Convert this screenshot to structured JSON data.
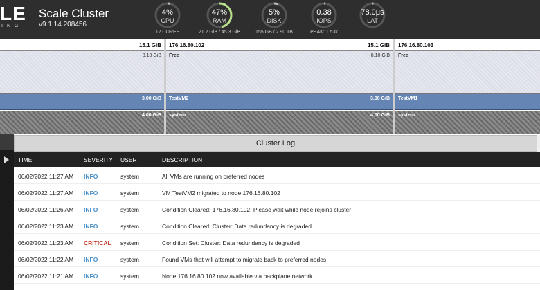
{
  "header": {
    "logo_text": "LE",
    "logo_sub": "ING",
    "cluster_name": "Scale Cluster",
    "version": "v9.1.14.208456",
    "gauges": [
      {
        "value": "4%",
        "label": "CPU",
        "sub": "12 CORES",
        "fill": 0.04,
        "color": "#bbbbbb"
      },
      {
        "value": "47%",
        "label": "RAM",
        "sub": "21.2 GiB / 45.3 GiB",
        "fill": 0.47,
        "color": "#b8e08a"
      },
      {
        "value": "5%",
        "label": "DISK",
        "sub": "155 GB / 2.90 TB",
        "fill": 0.05,
        "color": "#bbbbbb"
      },
      {
        "value": "0.38",
        "label": "IOPS",
        "sub": "PEAK: 1.53k",
        "fill": 0.0,
        "color": "#bbbbbb"
      },
      {
        "value": "78.0μs",
        "label": "LAT",
        "sub": "",
        "fill": 0.0,
        "color": "#bbbbbb"
      }
    ]
  },
  "nodes": [
    {
      "ip": "",
      "total": "15.1 GiB",
      "free_label": "",
      "free_size": "8.10 GiB",
      "vm_label": "",
      "vm_size": "3.00 GiB",
      "sys_label": "",
      "sys_size": "4.00 GiB"
    },
    {
      "ip": "176.16.80.102",
      "total": "15.1 GiB",
      "free_label": "Free",
      "free_size": "8.10 GiB",
      "vm_label": "TestVM2",
      "vm_size": "3.00 GiB",
      "sys_label": "system",
      "sys_size": "4.00 GiB"
    },
    {
      "ip": "176.16.80.103",
      "total": "",
      "free_label": "Free",
      "free_size": "",
      "vm_label": "TestVM1",
      "vm_size": "",
      "sys_label": "system",
      "sys_size": ""
    }
  ],
  "log": {
    "title": "Cluster Log",
    "columns": {
      "time": "TIME",
      "severity": "SEVERITY",
      "user": "USER",
      "description": "DESCRIPTION"
    },
    "rows": [
      {
        "time": "06/02/2022 11:27 AM",
        "severity": "INFO",
        "user": "system",
        "description": "All VMs are running on preferred nodes"
      },
      {
        "time": "06/02/2022 11:27 AM",
        "severity": "INFO",
        "user": "system",
        "description": "VM TestVM2 migrated to node 176.16.80.102"
      },
      {
        "time": "06/02/2022 11:26 AM",
        "severity": "INFO",
        "user": "system",
        "description": "Condition Cleared: 176.16.80.102: Please wait while node rejoins cluster"
      },
      {
        "time": "06/02/2022 11:23 AM",
        "severity": "INFO",
        "user": "system",
        "description": "Condition Cleared: Cluster: Data redundancy is degraded"
      },
      {
        "time": "06/02/2022 11:23 AM",
        "severity": "CRITICAL",
        "user": "system",
        "description": "Condition Set: Cluster: Data redundancy is degraded"
      },
      {
        "time": "06/02/2022 11:22 AM",
        "severity": "INFO",
        "user": "system",
        "description": "Found VMs that will attempt to migrate back to preferred nodes"
      },
      {
        "time": "06/02/2022 11:21 AM",
        "severity": "INFO",
        "user": "system",
        "description": "Node 176.16.80.102 now available via backplane network"
      }
    ]
  }
}
